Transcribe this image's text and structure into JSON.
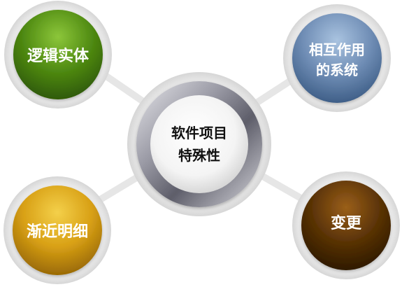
{
  "center": {
    "line1": "软件项目",
    "line2": "特殊性"
  },
  "nodes": [
    {
      "key": "top-left",
      "lines": [
        "逻辑实体"
      ],
      "color": "#4f8a12"
    },
    {
      "key": "top-right",
      "lines": [
        "相互作用",
        "的系统"
      ],
      "color": "#6f8db5"
    },
    {
      "key": "bottom-left",
      "lines": [
        "渐近明细"
      ],
      "color": "#d8a015"
    },
    {
      "key": "bottom-right",
      "lines": [
        "变更"
      ],
      "color": "#5a3306"
    }
  ]
}
